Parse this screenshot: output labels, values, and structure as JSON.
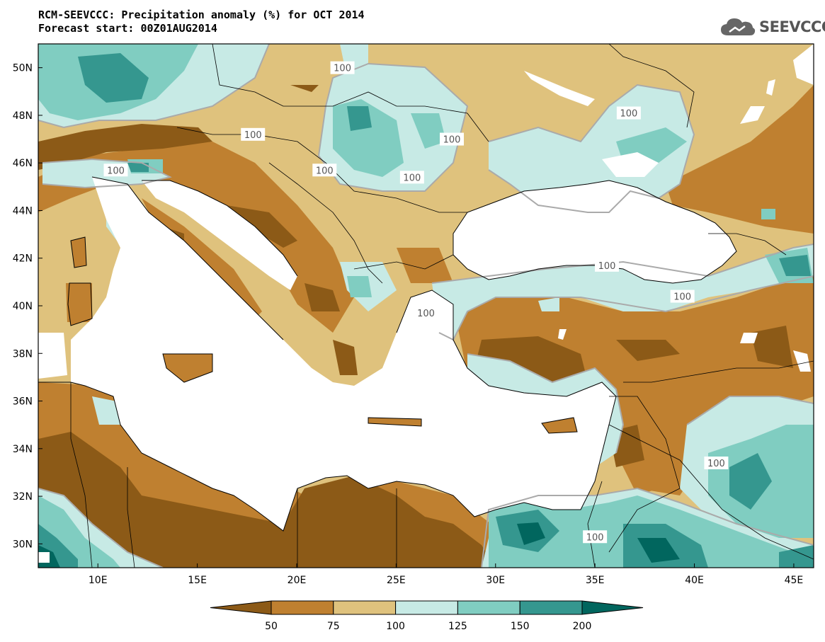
{
  "title": {
    "line1": "RCM-SEEVCCC: Precipitation anomaly (%) for OCT 2014",
    "line2": "Forecast start: 00Z01AUG2014"
  },
  "logo": {
    "icon": "cloud-icon",
    "text": "SEEVCCC"
  },
  "map": {
    "lon_range": [
      7,
      46
    ],
    "lat_range": [
      29,
      51
    ],
    "x_ticks": [
      "10E",
      "15E",
      "20E",
      "25E",
      "30E",
      "35E",
      "40E",
      "45E"
    ],
    "y_ticks": [
      "50N",
      "48N",
      "46N",
      "44N",
      "42N",
      "40N",
      "38N",
      "36N",
      "34N",
      "32N",
      "30N"
    ],
    "contour_label": "100",
    "contour_labels_count": 13,
    "colors": {
      "lt50": "#8c5a17",
      "50_75": "#bf8030",
      "75_100": "#dfc27d",
      "100_125": "#c7eae5",
      "125_150": "#80cdc1",
      "150_200": "#35978f",
      "gt200": "#01665e",
      "sea": "#ffffff",
      "contour100": "#aaaaaa"
    }
  },
  "colorbar": {
    "labels": [
      "50",
      "75",
      "100",
      "125",
      "150",
      "200"
    ],
    "colors": [
      "#8c5a17",
      "#bf8030",
      "#dfc27d",
      "#c7eae5",
      "#80cdc1",
      "#35978f",
      "#01665e"
    ]
  }
}
